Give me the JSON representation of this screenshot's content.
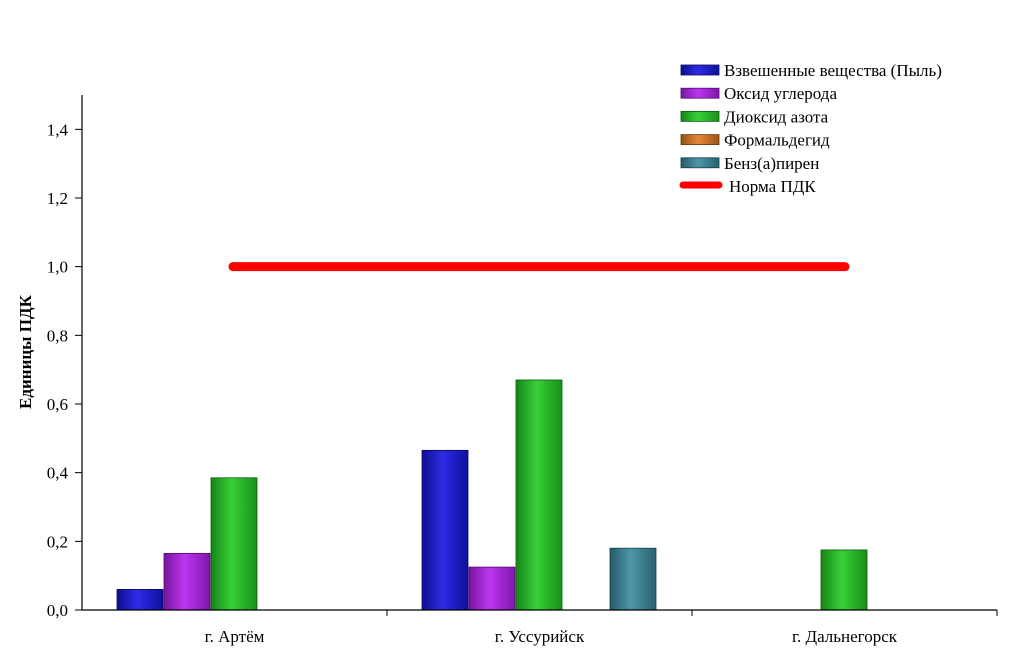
{
  "chart_data": {
    "type": "bar",
    "title": "",
    "xlabel": "",
    "ylabel": "Единицы ПДК",
    "ylim": [
      0,
      1.5
    ],
    "yticks": [
      0,
      0.2,
      0.4,
      0.6,
      0.8,
      1.0,
      1.2,
      1.4
    ],
    "ytick_labels": [
      "0,0",
      "0,2",
      "0,4",
      "0,6",
      "0,8",
      "1,0",
      "1,2",
      "1,4"
    ],
    "categories": [
      "г. Артём",
      "г. Уссурийск",
      "г. Дальнегорск"
    ],
    "series": [
      {
        "name": "Взвешенные вещества (Пыль)",
        "color": "#1515e0",
        "values": [
          0.06,
          0.465,
          null
        ]
      },
      {
        "name": "Оксид углерода",
        "color": "#b520f0",
        "values": [
          0.165,
          0.125,
          null
        ]
      },
      {
        "name": "Диоксид азота",
        "color": "#22cc22",
        "values": [
          0.385,
          0.67,
          0.175
        ]
      },
      {
        "name": "Формальдегид",
        "color": "#e07b20",
        "values": [
          null,
          null,
          null
        ]
      },
      {
        "name": "Бенз(а)пирен",
        "color": "#3a8aa0",
        "values": [
          null,
          0.18,
          null
        ]
      }
    ],
    "reference_line": {
      "name": "Норма ПДК",
      "value": 1.0,
      "color": "#ff0000"
    },
    "legend_position": "top-right",
    "grid": false
  }
}
